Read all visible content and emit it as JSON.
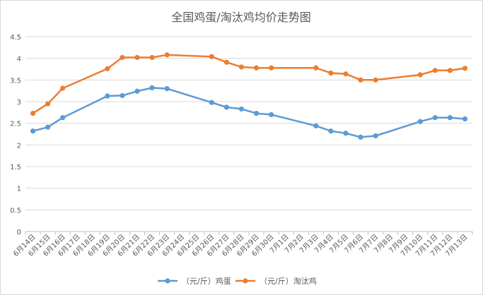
{
  "chart_data": {
    "type": "line",
    "title": "全国鸡蛋/淘汰鸡均价走势图",
    "categories": [
      "6月14日",
      "6月15日",
      "6月16日",
      "6月17日",
      "6月18日",
      "6月19日",
      "6月20日",
      "6月21日",
      "6月22日",
      "6月23日",
      "6月24日",
      "6月25日",
      "6月26日",
      "6月27日",
      "6月28日",
      "6月29日",
      "6月30日",
      "7月1日",
      "7月2日",
      "7月3日",
      "7月4日",
      "7月5日",
      "7月6日",
      "7月7日",
      "7月8日",
      "7月9日",
      "7月10日",
      "7月11日",
      "7月12日",
      "7月13日"
    ],
    "series": [
      {
        "name": "（元/斤）鸡蛋",
        "color": "#5b9bd5",
        "values": [
          2.32,
          2.41,
          2.63,
          null,
          null,
          3.13,
          3.14,
          3.24,
          3.32,
          3.3,
          null,
          null,
          2.98,
          2.87,
          2.83,
          2.73,
          2.7,
          null,
          null,
          2.44,
          2.32,
          2.27,
          2.18,
          2.21,
          null,
          null,
          2.54,
          2.63,
          2.63,
          2.6
        ]
      },
      {
        "name": "（元/斤）淘汰鸡",
        "color": "#ed7d31",
        "values": [
          2.73,
          2.95,
          3.31,
          null,
          null,
          3.76,
          4.02,
          4.02,
          4.02,
          4.08,
          null,
          null,
          4.04,
          3.91,
          3.8,
          3.78,
          3.78,
          null,
          null,
          3.78,
          3.66,
          3.64,
          3.5,
          3.5,
          null,
          null,
          3.62,
          3.72,
          3.72,
          3.77
        ]
      }
    ],
    "ylim": [
      0,
      4.5
    ],
    "yticks": [
      "0",
      "0.5",
      "1",
      "1.5",
      "2",
      "2.5",
      "3",
      "3.5",
      "4",
      "4.5"
    ],
    "grid": true,
    "legend": "bottom"
  }
}
